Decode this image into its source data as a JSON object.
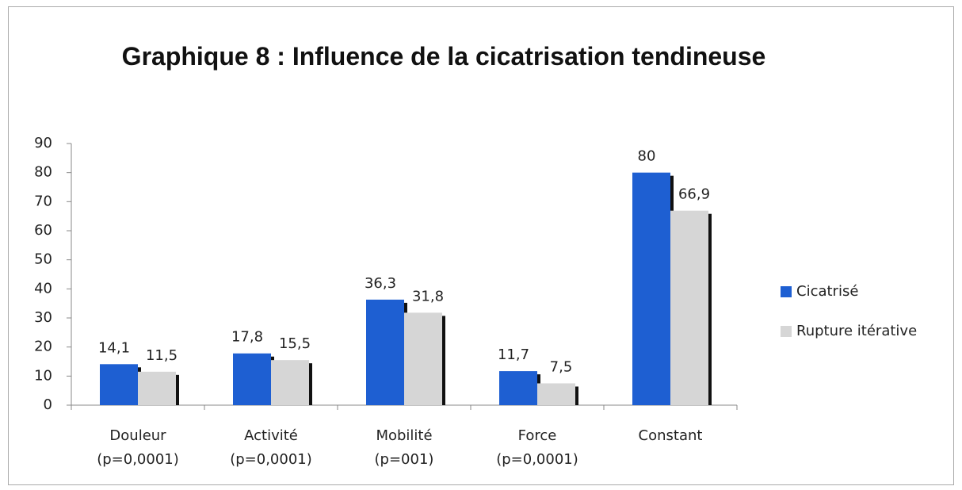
{
  "chart_data": {
    "type": "bar",
    "title": "Graphique 8 : Influence de la cicatrisation tendineuse",
    "categories": [
      "Douleur\n(p=0,0001)",
      "Activité\n(p=0,0001)",
      "Mobilité\n(p=001)",
      "Force\n(p=0,0001)",
      "Constant"
    ],
    "series": [
      {
        "name": "Cicatrisé",
        "color": "#1e5fd2",
        "values": [
          14.1,
          17.8,
          36.3,
          11.7,
          80
        ],
        "value_labels": [
          "14,1",
          "17,8",
          "36,3",
          "11,7",
          "80"
        ]
      },
      {
        "name": "Rupture itérative",
        "color": "#d6d6d6",
        "values": [
          11.5,
          15.5,
          31.8,
          7.5,
          66.9
        ],
        "value_labels": [
          "11,5",
          "15,5",
          "31,8",
          "7,5",
          "66,9"
        ]
      }
    ],
    "ylim": [
      0,
      90
    ],
    "yticks": [
      0,
      10,
      20,
      30,
      40,
      50,
      60,
      70,
      80,
      90
    ],
    "legend": "right"
  }
}
